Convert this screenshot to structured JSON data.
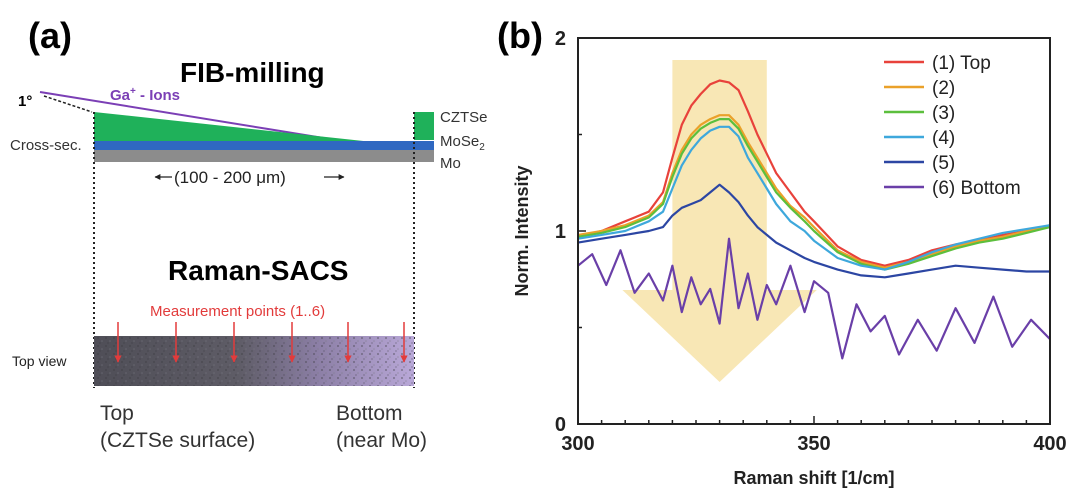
{
  "figure": {
    "colors": {
      "czts": "#1fb15a",
      "mose2": "#2f68c1",
      "mo": "#8c8c8c",
      "ion": "#7b3fb5",
      "marker": "#e23b3b",
      "highlight": "#f7e3a8",
      "sample": "#5b5a63"
    }
  },
  "panel_a": {
    "label": "(a)",
    "fib_title": "FIB-milling",
    "angle_label": "1°",
    "ion_label_main": "Ga",
    "ion_label_sup": "+",
    "ion_label_rest": " - Ions",
    "cross_section_label": "Cross-sec.",
    "layers": {
      "czts": "CZTSe",
      "mose2_main": "MoSe",
      "mose2_sub": "2",
      "mo": "Mo"
    },
    "width_label": "(100 - 200 μm)",
    "raman_title": "Raman-SACS",
    "measurement_label": "Measurement points (1..6)",
    "top_view_label": "Top view",
    "bottom_left": {
      "line1": "Top",
      "line2": "(CZTSe surface)"
    },
    "bottom_right": {
      "line1": "Bottom",
      "line2": "(near Mo)"
    }
  },
  "chart_data": {
    "type": "line",
    "panel_label": "(b)",
    "title": "",
    "xlabel": "Raman shift [1/cm]",
    "ylabel": "Norm. Intensity",
    "xlim": [
      300,
      400
    ],
    "ylim": [
      0,
      2
    ],
    "x_ticks": [
      300,
      350,
      400
    ],
    "y_ticks": [
      0,
      1,
      2
    ],
    "legend_position": "top-right",
    "grid": false,
    "highlight_range": [
      320,
      340
    ],
    "series": [
      {
        "name": "(1) Top",
        "color": "#e8423b",
        "points": [
          [
            300,
            0.97
          ],
          [
            305,
            1.0
          ],
          [
            310,
            1.05
          ],
          [
            315,
            1.1
          ],
          [
            318,
            1.2
          ],
          [
            320,
            1.38
          ],
          [
            322,
            1.55
          ],
          [
            324,
            1.65
          ],
          [
            326,
            1.71
          ],
          [
            328,
            1.76
          ],
          [
            330,
            1.78
          ],
          [
            332,
            1.77
          ],
          [
            334,
            1.73
          ],
          [
            336,
            1.62
          ],
          [
            338,
            1.5
          ],
          [
            340,
            1.4
          ],
          [
            342,
            1.3
          ],
          [
            345,
            1.2
          ],
          [
            348,
            1.1
          ],
          [
            350,
            1.05
          ],
          [
            355,
            0.92
          ],
          [
            360,
            0.85
          ],
          [
            365,
            0.82
          ],
          [
            370,
            0.85
          ],
          [
            375,
            0.9
          ],
          [
            380,
            0.93
          ],
          [
            385,
            0.95
          ],
          [
            390,
            0.98
          ],
          [
            395,
            1.0
          ],
          [
            400,
            1.02
          ]
        ]
      },
      {
        "name": "(2)",
        "color": "#eaa12a",
        "points": [
          [
            300,
            0.98
          ],
          [
            305,
            1.0
          ],
          [
            310,
            1.03
          ],
          [
            315,
            1.08
          ],
          [
            318,
            1.15
          ],
          [
            320,
            1.3
          ],
          [
            322,
            1.42
          ],
          [
            324,
            1.5
          ],
          [
            326,
            1.55
          ],
          [
            328,
            1.58
          ],
          [
            330,
            1.6
          ],
          [
            332,
            1.6
          ],
          [
            334,
            1.55
          ],
          [
            336,
            1.46
          ],
          [
            338,
            1.38
          ],
          [
            340,
            1.3
          ],
          [
            342,
            1.22
          ],
          [
            345,
            1.13
          ],
          [
            348,
            1.07
          ],
          [
            350,
            1.02
          ],
          [
            355,
            0.9
          ],
          [
            360,
            0.84
          ],
          [
            365,
            0.81
          ],
          [
            370,
            0.84
          ],
          [
            375,
            0.88
          ],
          [
            380,
            0.92
          ],
          [
            385,
            0.95
          ],
          [
            390,
            0.97
          ],
          [
            395,
            1.0
          ],
          [
            400,
            1.03
          ]
        ]
      },
      {
        "name": "(3)",
        "color": "#5cbf3d",
        "points": [
          [
            300,
            0.97
          ],
          [
            305,
            0.99
          ],
          [
            310,
            1.02
          ],
          [
            315,
            1.07
          ],
          [
            318,
            1.14
          ],
          [
            320,
            1.28
          ],
          [
            322,
            1.4
          ],
          [
            324,
            1.48
          ],
          [
            326,
            1.53
          ],
          [
            328,
            1.56
          ],
          [
            330,
            1.58
          ],
          [
            332,
            1.58
          ],
          [
            334,
            1.53
          ],
          [
            336,
            1.44
          ],
          [
            338,
            1.36
          ],
          [
            340,
            1.28
          ],
          [
            342,
            1.2
          ],
          [
            345,
            1.12
          ],
          [
            348,
            1.05
          ],
          [
            350,
            1.0
          ],
          [
            355,
            0.89
          ],
          [
            360,
            0.83
          ],
          [
            365,
            0.8
          ],
          [
            370,
            0.83
          ],
          [
            375,
            0.87
          ],
          [
            380,
            0.91
          ],
          [
            385,
            0.94
          ],
          [
            390,
            0.96
          ],
          [
            395,
            0.99
          ],
          [
            400,
            1.02
          ]
        ]
      },
      {
        "name": "(4)",
        "color": "#3ea8dc",
        "points": [
          [
            300,
            0.96
          ],
          [
            305,
            0.98
          ],
          [
            310,
            1.0
          ],
          [
            315,
            1.05
          ],
          [
            318,
            1.1
          ],
          [
            320,
            1.22
          ],
          [
            322,
            1.34
          ],
          [
            324,
            1.42
          ],
          [
            326,
            1.48
          ],
          [
            328,
            1.52
          ],
          [
            330,
            1.54
          ],
          [
            332,
            1.54
          ],
          [
            334,
            1.49
          ],
          [
            336,
            1.38
          ],
          [
            338,
            1.3
          ],
          [
            340,
            1.22
          ],
          [
            342,
            1.14
          ],
          [
            345,
            1.05
          ],
          [
            348,
            1.0
          ],
          [
            350,
            0.95
          ],
          [
            355,
            0.86
          ],
          [
            360,
            0.82
          ],
          [
            365,
            0.8
          ],
          [
            370,
            0.84
          ],
          [
            375,
            0.89
          ],
          [
            380,
            0.93
          ],
          [
            385,
            0.96
          ],
          [
            390,
            0.99
          ],
          [
            395,
            1.01
          ],
          [
            400,
            1.03
          ]
        ]
      },
      {
        "name": "(5)",
        "color": "#2c46a3",
        "points": [
          [
            300,
            0.94
          ],
          [
            305,
            0.96
          ],
          [
            310,
            0.98
          ],
          [
            315,
            1.0
          ],
          [
            318,
            1.02
          ],
          [
            320,
            1.08
          ],
          [
            322,
            1.12
          ],
          [
            324,
            1.14
          ],
          [
            326,
            1.16
          ],
          [
            328,
            1.2
          ],
          [
            330,
            1.24
          ],
          [
            332,
            1.2
          ],
          [
            334,
            1.15
          ],
          [
            336,
            1.08
          ],
          [
            338,
            1.02
          ],
          [
            340,
            0.98
          ],
          [
            342,
            0.94
          ],
          [
            345,
            0.9
          ],
          [
            348,
            0.86
          ],
          [
            350,
            0.84
          ],
          [
            355,
            0.8
          ],
          [
            360,
            0.77
          ],
          [
            365,
            0.76
          ],
          [
            370,
            0.78
          ],
          [
            375,
            0.8
          ],
          [
            380,
            0.82
          ],
          [
            385,
            0.81
          ],
          [
            390,
            0.8
          ],
          [
            395,
            0.79
          ],
          [
            400,
            0.79
          ]
        ]
      },
      {
        "name": "(6) Bottom",
        "color": "#6a3fa8",
        "points": [
          [
            300,
            0.82
          ],
          [
            303,
            0.88
          ],
          [
            306,
            0.72
          ],
          [
            309,
            0.9
          ],
          [
            312,
            0.68
          ],
          [
            315,
            0.78
          ],
          [
            318,
            0.64
          ],
          [
            320,
            0.82
          ],
          [
            322,
            0.58
          ],
          [
            324,
            0.76
          ],
          [
            326,
            0.62
          ],
          [
            328,
            0.7
          ],
          [
            330,
            0.52
          ],
          [
            332,
            0.96
          ],
          [
            334,
            0.6
          ],
          [
            336,
            0.78
          ],
          [
            338,
            0.54
          ],
          [
            340,
            0.72
          ],
          [
            342,
            0.62
          ],
          [
            345,
            0.82
          ],
          [
            348,
            0.58
          ],
          [
            350,
            0.74
          ],
          [
            353,
            0.68
          ],
          [
            356,
            0.34
          ],
          [
            359,
            0.62
          ],
          [
            362,
            0.48
          ],
          [
            365,
            0.56
          ],
          [
            368,
            0.36
          ],
          [
            372,
            0.54
          ],
          [
            376,
            0.38
          ],
          [
            380,
            0.6
          ],
          [
            384,
            0.42
          ],
          [
            388,
            0.66
          ],
          [
            392,
            0.4
          ],
          [
            396,
            0.54
          ],
          [
            400,
            0.44
          ]
        ]
      }
    ]
  }
}
